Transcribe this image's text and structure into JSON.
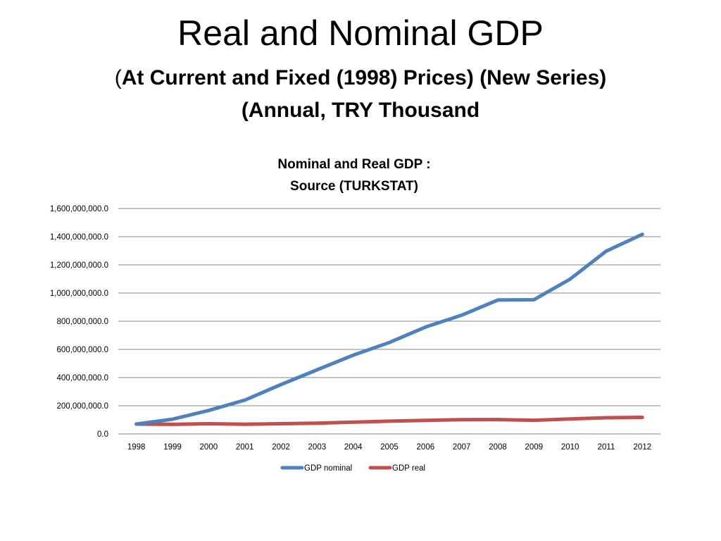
{
  "slide": {
    "title": "Real and Nominal GDP",
    "subtitle_open": "(",
    "subtitle_bold": "At Current and Fixed (1998) Prices) (New Series)(Annual, TRY Thousand"
  },
  "chart_data": {
    "type": "line",
    "title": [
      "Nominal and Real GDP :",
      "Source (TURKSTAT)"
    ],
    "xlabel": "",
    "ylabel": "",
    "ylim": [
      0,
      1600000000
    ],
    "y_ticks": [
      "0.0",
      "200,000,000.0",
      "400,000,000.0",
      "600,000,000.0",
      "800,000,000.0",
      "1,000,000,000.0",
      "1,200,000,000.0",
      "1,400,000,000.0",
      "1,600,000,000.0"
    ],
    "grid": true,
    "legend": "bottom",
    "categories": [
      "1998",
      "1999",
      "2000",
      "2001",
      "2002",
      "2003",
      "2004",
      "2005",
      "2006",
      "2007",
      "2008",
      "2009",
      "2010",
      "2011",
      "2012"
    ],
    "series": [
      {
        "name": "GDP nominal",
        "color": "#4F81BD",
        "values": [
          70203147,
          104595916,
          166658021,
          240224083,
          350476089,
          454780659,
          559033026,
          648931712,
          758390785,
          843178421,
          950534251,
          952558579,
          1098799348,
          1297713210,
          1416798490
        ]
      },
      {
        "name": "GDP real",
        "color": "#C0504D",
        "values": [
          70203147,
          67840570,
          72436399,
          68309352,
          72519831,
          76338193,
          83485591,
          90499731,
          96738320,
          101254625,
          101921730,
          97003114,
          105885644,
          115174724,
          117625142
        ]
      }
    ]
  }
}
